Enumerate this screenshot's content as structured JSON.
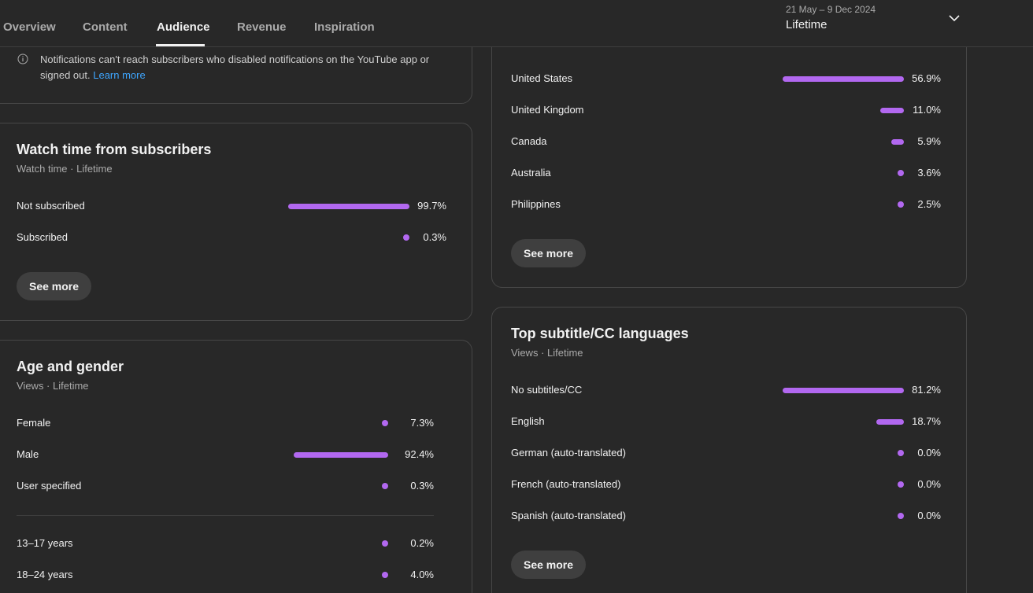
{
  "tabs": [
    {
      "label": "Overview"
    },
    {
      "label": "Content"
    },
    {
      "label": "Audience"
    },
    {
      "label": "Revenue"
    },
    {
      "label": "Inspiration"
    }
  ],
  "date_filter": {
    "range": "21 May – 9 Dec 2024",
    "value": "Lifetime"
  },
  "notice": {
    "text": "Notifications can't reach subscribers who disabled notifications on the YouTube app or signed out.",
    "link": "Learn more"
  },
  "watch_time": {
    "title": "Watch time from subscribers",
    "subtitle": "Watch time · Lifetime",
    "rows": [
      {
        "label": "Not subscribed",
        "pct": "99.7%",
        "value": 99.7
      },
      {
        "label": "Subscribed",
        "pct": "0.3%",
        "value": 0.3
      }
    ],
    "see_more": "See more"
  },
  "age_gender": {
    "title": "Age and gender",
    "subtitle": "Views · Lifetime",
    "gender_rows": [
      {
        "label": "Female",
        "pct": "7.3%",
        "value": 7.3
      },
      {
        "label": "Male",
        "pct": "92.4%",
        "value": 92.4
      },
      {
        "label": "User specified",
        "pct": "0.3%",
        "value": 0.3
      }
    ],
    "age_rows": [
      {
        "label": "13–17 years",
        "pct": "0.2%",
        "value": 0.2
      },
      {
        "label": "18–24 years",
        "pct": "4.0%",
        "value": 4.0
      }
    ]
  },
  "geography": {
    "rows": [
      {
        "label": "United States",
        "pct": "56.9%",
        "value": 56.9
      },
      {
        "label": "United Kingdom",
        "pct": "11.0%",
        "value": 11.0
      },
      {
        "label": "Canada",
        "pct": "5.9%",
        "value": 5.9
      },
      {
        "label": "Australia",
        "pct": "3.6%",
        "value": 3.6
      },
      {
        "label": "Philippines",
        "pct": "2.5%",
        "value": 2.5
      }
    ],
    "see_more": "See more"
  },
  "subtitles": {
    "title": "Top subtitle/CC languages",
    "subtitle": "Views · Lifetime",
    "rows": [
      {
        "label": "No subtitles/CC",
        "pct": "81.2%",
        "value": 81.2
      },
      {
        "label": "English",
        "pct": "18.7%",
        "value": 18.7
      },
      {
        "label": "German (auto-translated)",
        "pct": "0.0%",
        "value": 0.0
      },
      {
        "label": "French (auto-translated)",
        "pct": "0.0%",
        "value": 0.0
      },
      {
        "label": "Spanish (auto-translated)",
        "pct": "0.0%",
        "value": 0.0
      }
    ],
    "see_more": "See more"
  },
  "colors": {
    "bar": "#b268f0",
    "link": "#3ea6ff",
    "background": "#282828"
  }
}
